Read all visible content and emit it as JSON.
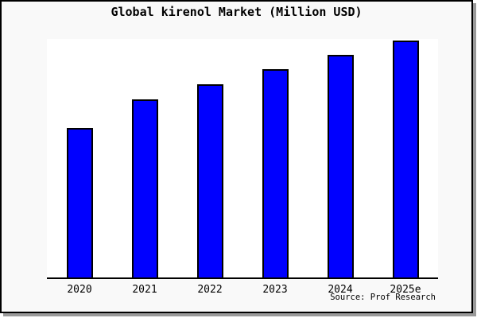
{
  "figure": {
    "title": "Global kirenol Market (Million USD)",
    "source": "Source: Prof Research"
  },
  "chart_data": {
    "type": "bar",
    "title": "Global kirenol Market (Million USD)",
    "categories": [
      "2020",
      "2021",
      "2022",
      "2023",
      "2024",
      "2025e"
    ],
    "values": [
      62.6,
      74.8,
      81.1,
      87.4,
      93.4,
      99.3
    ],
    "values_note": "y-axis is unlabeled in the image; values are bar heights as percent of plot-area height",
    "values_indexed_2020_100": [
      100,
      120,
      130,
      140,
      149,
      159
    ],
    "xlabel": "",
    "ylabel": "",
    "ylim": [
      0,
      100
    ],
    "grid": false,
    "legend": false,
    "bar_color": "#0000ff",
    "bar_border_color": "#000000",
    "source": "Source: Prof Research"
  },
  "colors": {
    "figure_background": "#f9f9f9",
    "plot_background": "#ffffff",
    "frame_border": "#000000",
    "frame_shadow": "#999999",
    "text": "#000000"
  }
}
